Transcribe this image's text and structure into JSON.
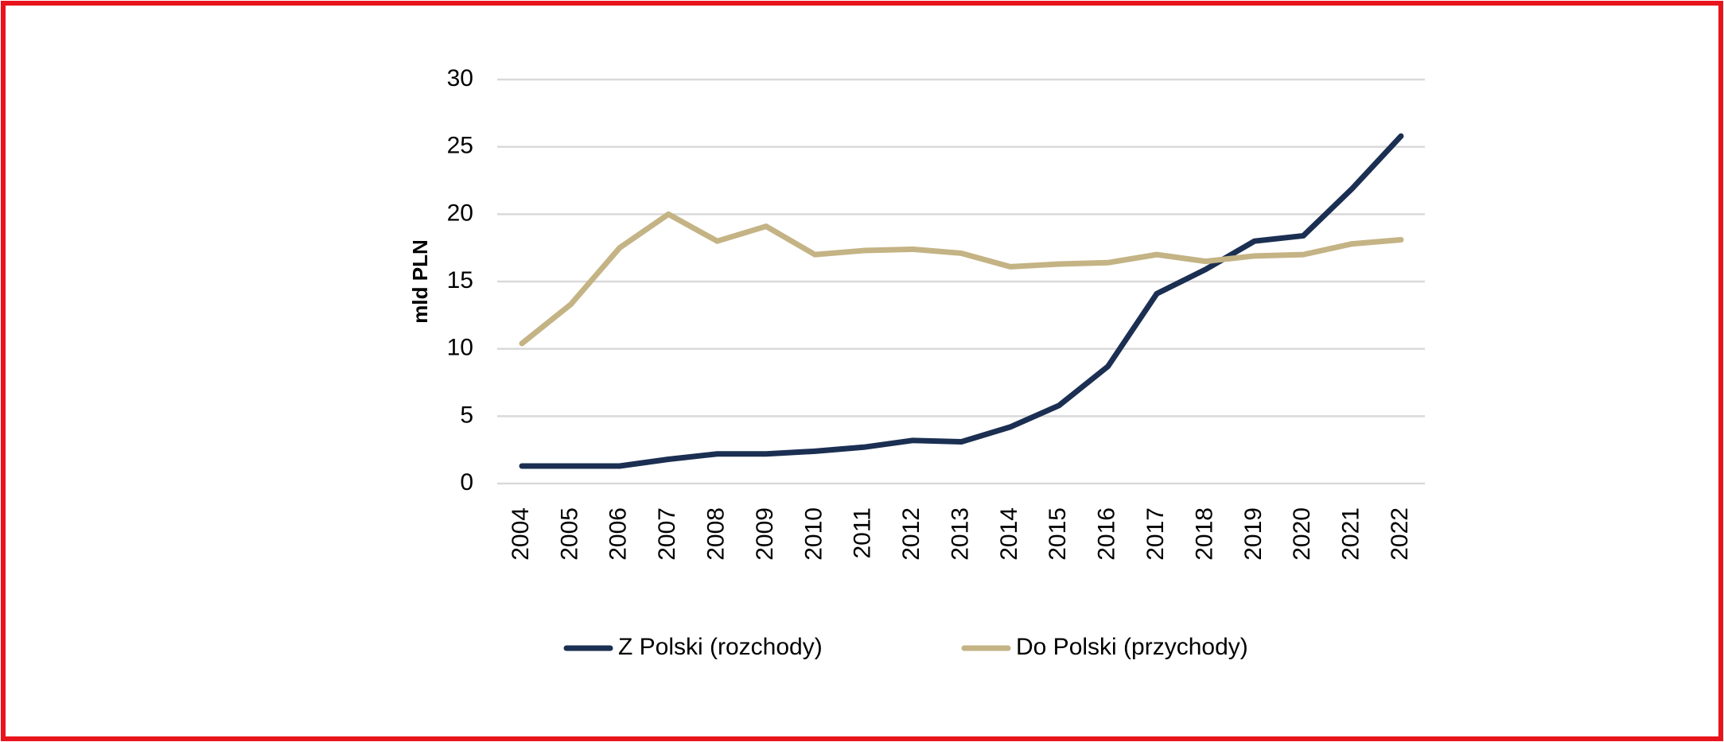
{
  "chart_data": {
    "type": "line",
    "ylabel": "mld PLN",
    "categories": [
      "2004",
      "2005",
      "2006",
      "2007",
      "2008",
      "2009",
      "2010",
      "2011",
      "2012",
      "2013",
      "2014",
      "2015",
      "2016",
      "2017",
      "2018",
      "2019",
      "2020",
      "2021",
      "2022"
    ],
    "series": [
      {
        "name": "Z Polski (rozchody)",
        "color": "#1b2f52",
        "values": [
          1.3,
          1.3,
          1.3,
          1.8,
          2.2,
          2.2,
          2.4,
          2.7,
          3.2,
          3.1,
          4.2,
          5.8,
          8.7,
          14.1,
          15.9,
          18.0,
          18.4,
          21.9,
          25.8
        ]
      },
      {
        "name": "Do Polski (przychody)",
        "color": "#c4b384",
        "values": [
          10.4,
          13.3,
          17.5,
          20.0,
          18.0,
          19.1,
          17.0,
          17.3,
          17.4,
          17.1,
          16.1,
          16.3,
          16.4,
          17.0,
          16.5,
          16.9,
          17.0,
          17.8,
          18.1
        ]
      }
    ],
    "ylim": [
      0,
      30
    ],
    "yticks": [
      0,
      5,
      10,
      15,
      20,
      25,
      30
    ],
    "grid": true,
    "legend": "bottom"
  }
}
